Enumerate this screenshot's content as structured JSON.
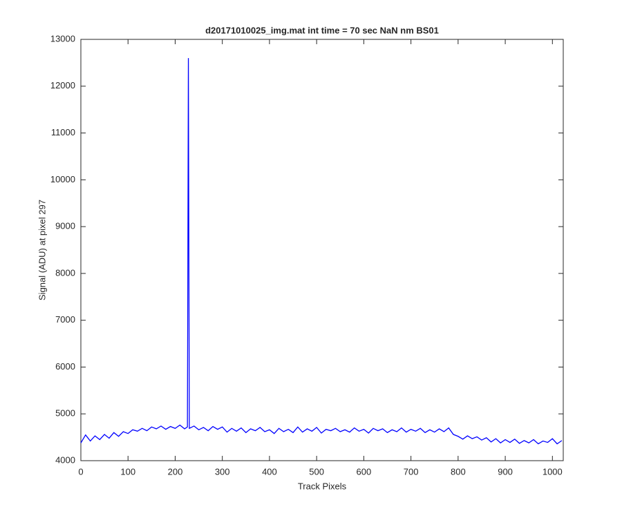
{
  "chart_data": {
    "type": "line",
    "title": "d20171010025_img.mat int time = 70 sec  NaN nm BS01",
    "x_label": "Track Pixels",
    "y_label": "Signal (ADU) at pixel 297",
    "xlim": [
      0,
      1023
    ],
    "ylim": [
      4000,
      13000
    ],
    "xticks": [
      0,
      100,
      200,
      300,
      400,
      500,
      600,
      700,
      800,
      900,
      1000
    ],
    "yticks": [
      4000,
      5000,
      6000,
      7000,
      8000,
      9000,
      10000,
      11000,
      12000,
      13000
    ],
    "grid": false,
    "series": [
      {
        "color": "#0000ff",
        "x": [
          0,
          10,
          20,
          30,
          40,
          50,
          60,
          70,
          80,
          90,
          100,
          110,
          120,
          130,
          140,
          150,
          160,
          170,
          180,
          190,
          200,
          210,
          220,
          226,
          228,
          230,
          240,
          250,
          260,
          270,
          280,
          290,
          300,
          310,
          320,
          330,
          340,
          350,
          360,
          370,
          380,
          390,
          400,
          410,
          420,
          430,
          440,
          450,
          460,
          470,
          480,
          490,
          500,
          510,
          520,
          530,
          540,
          550,
          560,
          570,
          580,
          590,
          600,
          610,
          620,
          630,
          640,
          650,
          660,
          670,
          680,
          690,
          700,
          710,
          720,
          730,
          740,
          750,
          760,
          770,
          780,
          790,
          800,
          810,
          820,
          830,
          840,
          850,
          860,
          870,
          880,
          890,
          900,
          910,
          920,
          930,
          940,
          950,
          960,
          970,
          980,
          990,
          1000,
          1010,
          1020
        ],
        "values": [
          4380,
          4550,
          4420,
          4530,
          4450,
          4560,
          4480,
          4600,
          4520,
          4620,
          4580,
          4660,
          4630,
          4690,
          4640,
          4720,
          4680,
          4740,
          4670,
          4730,
          4690,
          4760,
          4680,
          4720,
          12600,
          4690,
          4740,
          4660,
          4710,
          4640,
          4730,
          4670,
          4720,
          4610,
          4690,
          4630,
          4700,
          4600,
          4680,
          4640,
          4710,
          4620,
          4660,
          4580,
          4690,
          4620,
          4670,
          4600,
          4720,
          4610,
          4680,
          4630,
          4710,
          4590,
          4670,
          4640,
          4690,
          4620,
          4660,
          4610,
          4700,
          4630,
          4670,
          4590,
          4690,
          4640,
          4680,
          4600,
          4660,
          4620,
          4700,
          4610,
          4670,
          4630,
          4690,
          4600,
          4660,
          4610,
          4680,
          4620,
          4700,
          4560,
          4520,
          4460,
          4530,
          4470,
          4510,
          4440,
          4490,
          4400,
          4470,
          4380,
          4450,
          4390,
          4460,
          4370,
          4430,
          4380,
          4450,
          4360,
          4420,
          4390,
          4470,
          4360,
          4430
        ]
      }
    ]
  }
}
